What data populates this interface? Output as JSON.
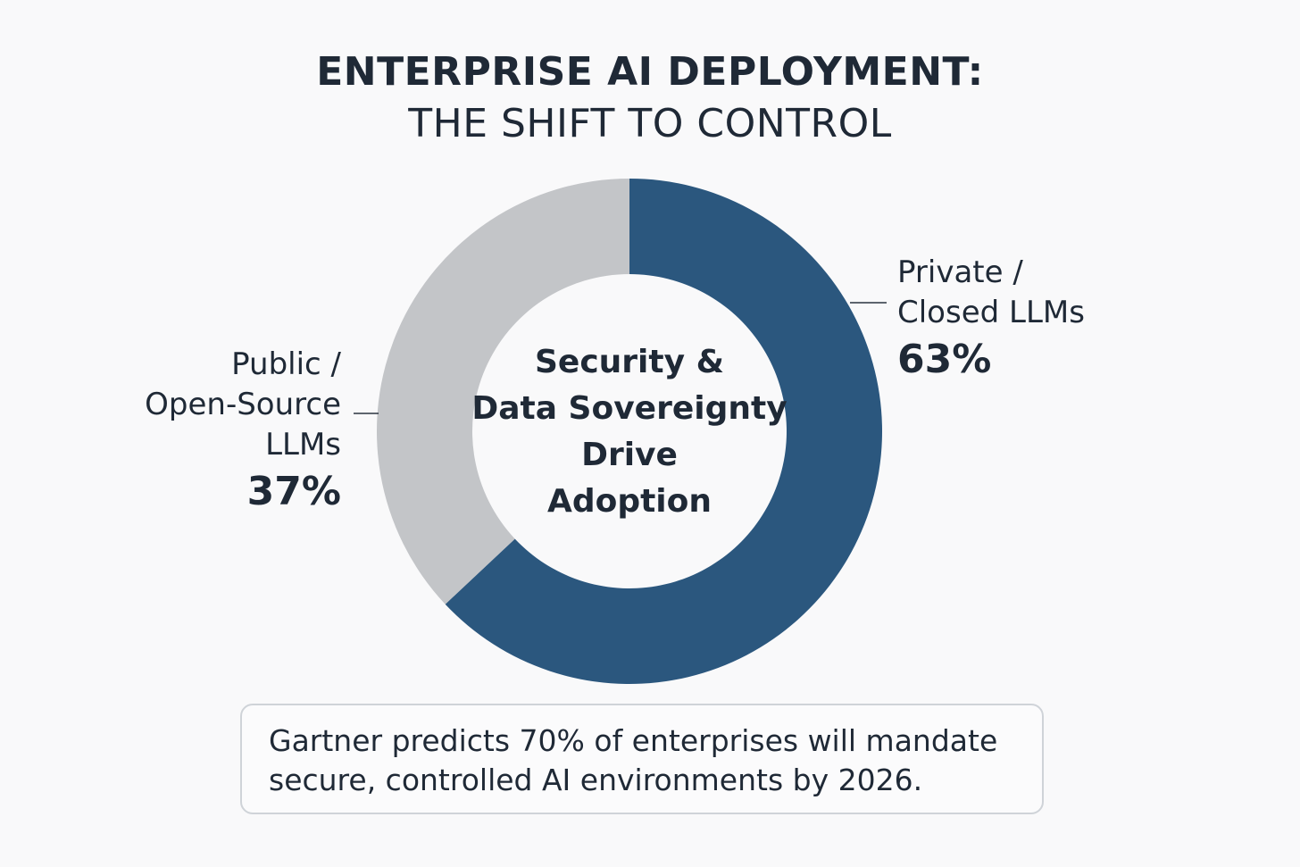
{
  "title": {
    "line1": "ENTERPRISE AI DEPLOYMENT:",
    "line2": "THE SHIFT TO CONTROL"
  },
  "chart_data": {
    "type": "pie",
    "variant": "donut",
    "title": "ENTERPRISE AI DEPLOYMENT: THE SHIFT TO CONTROL",
    "center_label": [
      "Security &",
      "Data Sovereignty",
      "Drive",
      "Adoption"
    ],
    "slices": [
      {
        "name": "Private / Closed LLMs",
        "label_lines": [
          "Private /",
          "Closed LLMs"
        ],
        "value": 63,
        "value_label": "63%",
        "color": "#2b577e",
        "label_side": "right"
      },
      {
        "name": "Public / Open-Source LLMs",
        "label_lines": [
          "Public /",
          "Open-Source",
          "LLMs"
        ],
        "value": 37,
        "value_label": "37%",
        "color": "#c3c5c8",
        "label_side": "left"
      }
    ]
  },
  "callout": {
    "text": "Gartner predicts 70% of enterprises will mandate secure, controlled AI environments by 2026."
  },
  "colors": {
    "background": "#f9f9fa",
    "text": "#1f2936",
    "callout_border": "#cfd3d8"
  }
}
